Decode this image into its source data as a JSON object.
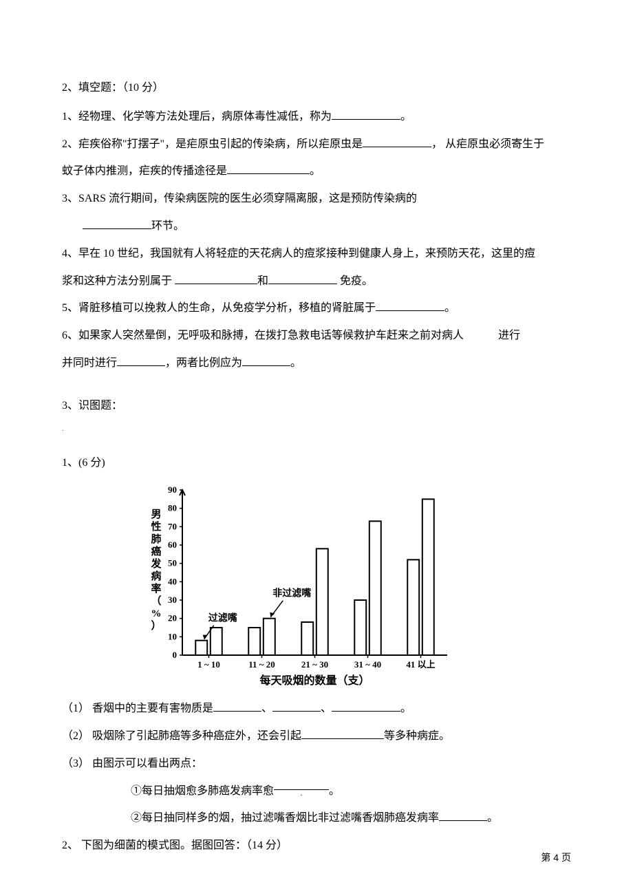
{
  "section2": {
    "header": "2、填空题：（10 分）",
    "q1": "1、经物理、化学等方法处理后，病原体毒性减低，称为",
    "q1_end": "。",
    "q2_a": "2、疟疾俗称\"打摆子\"，是疟原虫引起的传染病，所以疟原虫是",
    "q2_b": "， 从疟原虫必须寄生于",
    "q2_c": "蚊子体内推测，疟疾的传播途径是",
    "q2_end": "。",
    "q3_a": "3、SARS 流行期间，传染病医院的医生必须穿隔离服，这是预防传染病的",
    "q3_b": "环节。",
    "q4_a": "4、早在 10 世纪，我国就有人将轻症的天花病人的痘浆接种到健康人身上，来预防天花，这里的痘",
    "q4_b": "浆和这种方法分别属于 ",
    "q4_c": "和",
    "q4_d": " 免疫。",
    "q5_a": "5、肾脏移植可以挽救人的生命，从免疫学分析，移植的肾脏属于",
    "q5_end": "。",
    "q6_a": "6、如果家人突然晕倒，无呼吸和脉搏，在拨打急救电话等候救护车赶来之前对病人",
    "q6_b": "进行",
    "q6_c": "并同时进行",
    "q6_d": "，两者比例应为",
    "q6_end": "。"
  },
  "section3": {
    "header": "3、识图题：",
    "q1_header": "1、(6 分)",
    "q1_1_a": "（1）   香烟中的主要有害物质是",
    "q1_1_sep": "、",
    "q1_1_end": "。",
    "q1_2_a": "（2）   吸烟除了引起肺癌等多种癌症外，还会引起",
    "q1_2_b": "等多种病症。",
    "q1_3": "（3）   由图示可以看出两点：",
    "q1_3_1a": "①每日抽烟愈多肺癌发病率愈",
    "q1_3_1end": "。",
    "q1_3_2a": "②每日抽同样多的烟，抽过滤嘴香烟比非过滤嘴香烟肺癌发病率",
    "q1_3_2end": "。",
    "q2_header": "2、  下图为细菌的模式图。据图回答：（14 分）"
  },
  "chart": {
    "type": "bar",
    "title_y": "男性肺癌发病率（%）",
    "title_x": "每天吸烟的数量（支）",
    "categories": [
      "1 ~ 10",
      "11 ~ 20",
      "21 ~ 30",
      "31 ~ 40",
      "41 以上"
    ],
    "series1_label": "过滤嘴",
    "series2_label": "非过滤嘴",
    "series1": [
      8,
      15,
      18,
      30,
      52
    ],
    "series2": [
      15,
      20,
      58,
      73,
      85
    ],
    "ylim": [
      0,
      90
    ],
    "ytick_step": 10,
    "bar_fill": "#ffffff",
    "bar_stroke": "#000000",
    "text_color": "#000000",
    "font_size_axis": 13,
    "font_size_label": 15
  },
  "page_number": "第 4 页"
}
